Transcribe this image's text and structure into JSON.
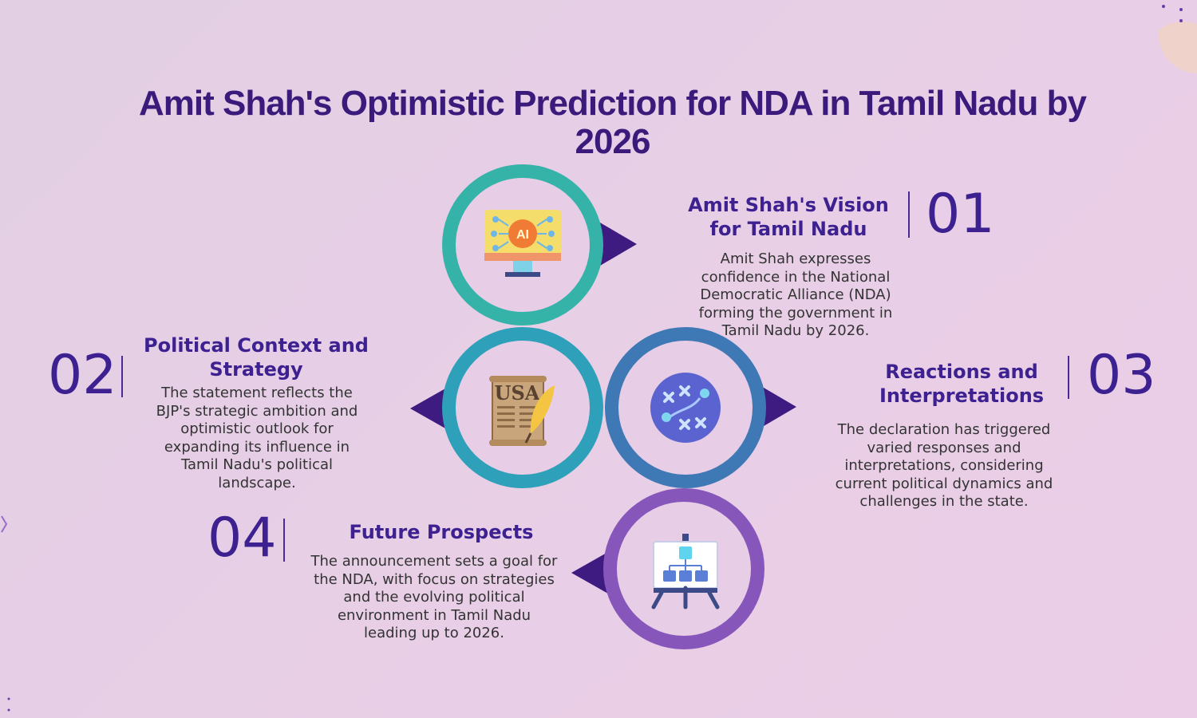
{
  "title": "Amit Shah's Optimistic Prediction for NDA in Tamil Nadu by 2026",
  "colors": {
    "title": "#3a1a7a",
    "heading": "#3d2190",
    "ring_teal": "#35b3a8",
    "ring_blue_teal": "#2fa0b9",
    "ring_blue": "#3f79b5",
    "ring_purple": "#8656bb",
    "arrow": "#3e1b80"
  },
  "items": [
    {
      "number": "01",
      "heading": "Amit Shah's Vision for Tamil Nadu",
      "description": "Amit Shah expresses confidence in the National Democratic Alliance (NDA) forming the government in Tamil Nadu by 2026.",
      "icon": "ai-monitor-icon",
      "icon_text": "AI"
    },
    {
      "number": "02",
      "heading": "Political Context and Strategy",
      "description": "The statement reflects the BJP's strategic ambition and optimistic outlook for expanding its influence in Tamil Nadu's political landscape.",
      "icon": "usa-scroll-quill-icon",
      "icon_text": "USA"
    },
    {
      "number": "03",
      "heading": "Reactions and Interpretations",
      "description": "The declaration has triggered varied responses and interpretations, considering current political dynamics and challenges in the state.",
      "icon": "strategy-play-icon"
    },
    {
      "number": "04",
      "heading": "Future Prospects",
      "description": "The announcement sets a goal for the NDA, with focus on strategies and the evolving political environment in Tamil Nadu leading up to 2026.",
      "icon": "flowchart-easel-icon"
    }
  ]
}
